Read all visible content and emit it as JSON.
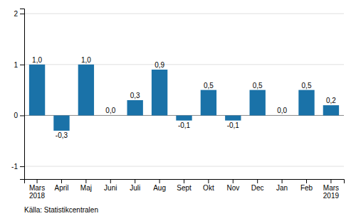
{
  "chart_data": {
    "type": "bar",
    "categories": [
      "Mars\n2018",
      "April",
      "Maj",
      "Juni",
      "Juli",
      "Aug",
      "Sept",
      "Okt",
      "Nov",
      "Dec",
      "Jan",
      "Feb",
      "Mars\n2019"
    ],
    "values": [
      1.0,
      -0.3,
      1.0,
      0.0,
      0.3,
      0.9,
      -0.1,
      0.5,
      -0.1,
      0.5,
      0.0,
      0.5,
      0.2
    ],
    "value_labels": [
      "1,0",
      "-0,3",
      "1,0",
      "0,0",
      "0,3",
      "0,9",
      "-0,1",
      "0,5",
      "-0,1",
      "0,5",
      "0,0",
      "0,5",
      "0,2"
    ],
    "data_labels": true,
    "color": "#1a72a8",
    "ylim": [
      -1.25,
      2.1
    ],
    "yticks": [
      -1,
      0,
      1,
      2
    ],
    "grid": true,
    "annotations": [
      "Källa: Statistikcentralen"
    ]
  }
}
